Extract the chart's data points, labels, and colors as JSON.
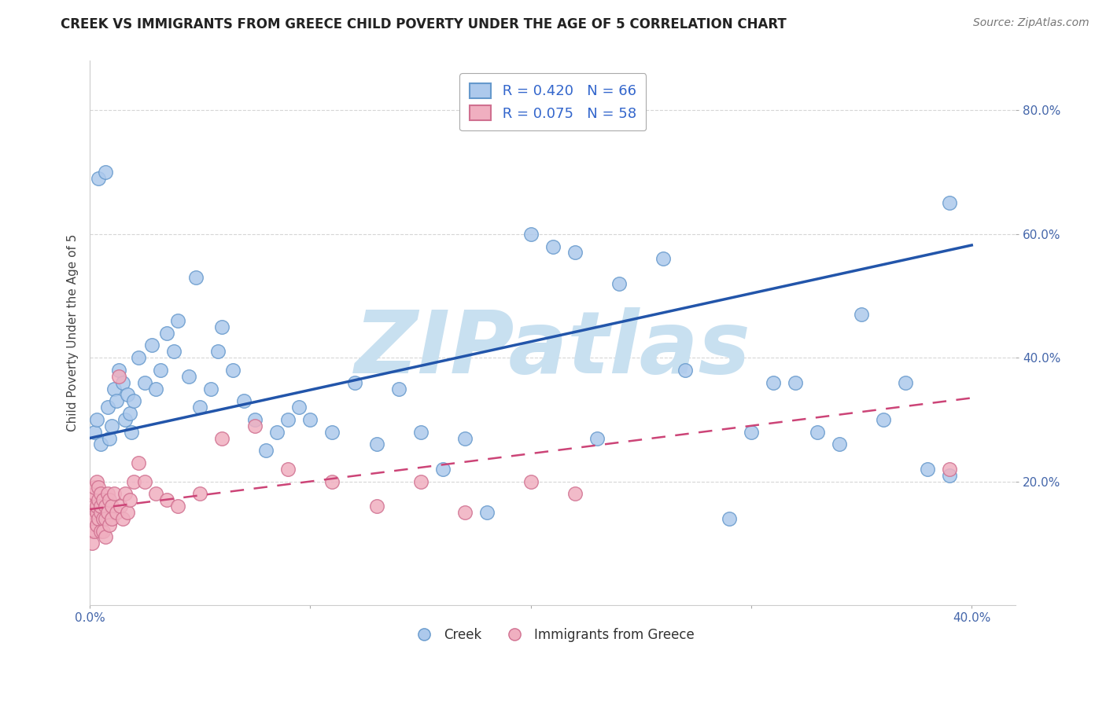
{
  "title": "CREEK VS IMMIGRANTS FROM GREECE CHILD POVERTY UNDER THE AGE OF 5 CORRELATION CHART",
  "source": "Source: ZipAtlas.com",
  "ylabel": "Child Poverty Under the Age of 5",
  "xlim": [
    0.0,
    0.42
  ],
  "ylim": [
    0.0,
    0.88
  ],
  "xticks": [
    0.0,
    0.1,
    0.2,
    0.3,
    0.4
  ],
  "xticklabels": [
    "0.0%",
    "",
    "",
    "",
    "40.0%"
  ],
  "yticks": [
    0.2,
    0.4,
    0.6,
    0.8
  ],
  "yticklabels": [
    "20.0%",
    "40.0%",
    "60.0%",
    "80.0%"
  ],
  "creek_color": "#adc9ec",
  "creek_edge_color": "#6699cc",
  "immigrants_color": "#f0afc0",
  "immigrants_edge_color": "#d07090",
  "creek_R": 0.42,
  "creek_N": 66,
  "immigrants_R": 0.075,
  "immigrants_N": 58,
  "watermark": "ZIPatlas",
  "watermark_color": "#c8e0f0",
  "legend_label_creek": "Creek",
  "legend_label_immigrants": "Immigrants from Greece",
  "creek_line_color": "#2255aa",
  "creek_line_intercept": 0.27,
  "creek_line_slope": 0.78,
  "immigrants_line_color": "#cc4477",
  "immigrants_line_intercept": 0.155,
  "immigrants_line_slope": 0.45,
  "creek_x": [
    0.002,
    0.003,
    0.005,
    0.008,
    0.009,
    0.01,
    0.011,
    0.012,
    0.013,
    0.015,
    0.016,
    0.017,
    0.018,
    0.019,
    0.02,
    0.022,
    0.025,
    0.028,
    0.03,
    0.032,
    0.035,
    0.038,
    0.04,
    0.045,
    0.05,
    0.055,
    0.058,
    0.06,
    0.065,
    0.07,
    0.075,
    0.08,
    0.085,
    0.09,
    0.095,
    0.1,
    0.11,
    0.12,
    0.13,
    0.14,
    0.15,
    0.16,
    0.17,
    0.18,
    0.2,
    0.21,
    0.22,
    0.23,
    0.24,
    0.26,
    0.29,
    0.3,
    0.31,
    0.32,
    0.33,
    0.34,
    0.35,
    0.36,
    0.37,
    0.38,
    0.39,
    0.39,
    0.004,
    0.007,
    0.048,
    0.27
  ],
  "creek_y": [
    0.28,
    0.3,
    0.26,
    0.32,
    0.27,
    0.29,
    0.35,
    0.33,
    0.38,
    0.36,
    0.3,
    0.34,
    0.31,
    0.28,
    0.33,
    0.4,
    0.36,
    0.42,
    0.35,
    0.38,
    0.44,
    0.41,
    0.46,
    0.37,
    0.32,
    0.35,
    0.41,
    0.45,
    0.38,
    0.33,
    0.3,
    0.25,
    0.28,
    0.3,
    0.32,
    0.3,
    0.28,
    0.36,
    0.26,
    0.35,
    0.28,
    0.22,
    0.27,
    0.15,
    0.6,
    0.58,
    0.57,
    0.27,
    0.52,
    0.56,
    0.14,
    0.28,
    0.36,
    0.36,
    0.28,
    0.26,
    0.47,
    0.3,
    0.36,
    0.22,
    0.21,
    0.65,
    0.69,
    0.7,
    0.53,
    0.38
  ],
  "immigrants_x": [
    0.001,
    0.001,
    0.001,
    0.001,
    0.001,
    0.002,
    0.002,
    0.002,
    0.002,
    0.002,
    0.003,
    0.003,
    0.003,
    0.003,
    0.004,
    0.004,
    0.004,
    0.005,
    0.005,
    0.005,
    0.005,
    0.006,
    0.006,
    0.006,
    0.007,
    0.007,
    0.007,
    0.008,
    0.008,
    0.009,
    0.009,
    0.01,
    0.01,
    0.011,
    0.012,
    0.013,
    0.014,
    0.015,
    0.016,
    0.017,
    0.018,
    0.02,
    0.022,
    0.025,
    0.03,
    0.035,
    0.04,
    0.05,
    0.06,
    0.075,
    0.09,
    0.11,
    0.13,
    0.15,
    0.17,
    0.2,
    0.22,
    0.39
  ],
  "immigrants_y": [
    0.15,
    0.13,
    0.17,
    0.12,
    0.1,
    0.16,
    0.14,
    0.18,
    0.12,
    0.19,
    0.15,
    0.2,
    0.13,
    0.16,
    0.17,
    0.14,
    0.19,
    0.15,
    0.12,
    0.18,
    0.16,
    0.14,
    0.17,
    0.12,
    0.16,
    0.14,
    0.11,
    0.18,
    0.15,
    0.17,
    0.13,
    0.16,
    0.14,
    0.18,
    0.15,
    0.37,
    0.16,
    0.14,
    0.18,
    0.15,
    0.17,
    0.2,
    0.23,
    0.2,
    0.18,
    0.17,
    0.16,
    0.18,
    0.27,
    0.29,
    0.22,
    0.2,
    0.16,
    0.2,
    0.15,
    0.2,
    0.18,
    0.22
  ]
}
